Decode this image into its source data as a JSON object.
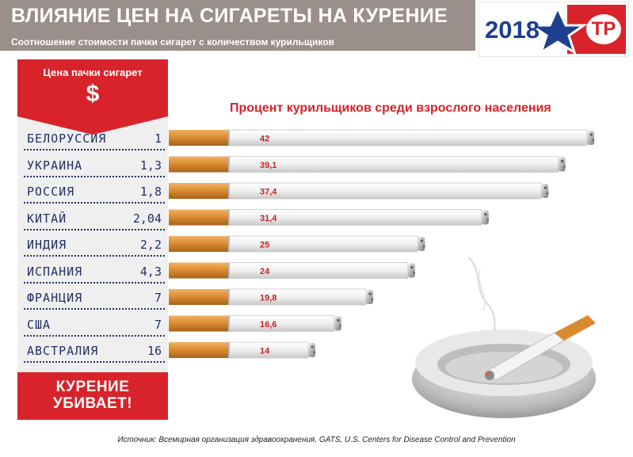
{
  "header": {
    "title": "ВЛИЯНИЕ ЦЕН НА СИГАРЕТЫ НА КУРЕНИЕ",
    "subtitle": "Соотношение стоимости пачки сигарет с количеством курильщиков"
  },
  "badge": {
    "year": "2018",
    "logo_text": "TP"
  },
  "price_panel": {
    "label": "Цена пачки сигарет",
    "symbol": "$"
  },
  "warning": {
    "line1": "КУРЕНИЕ",
    "line2": "УБИВАЕТ!"
  },
  "source": "Источник: Всемирная организация здравоохранения, GATS, U.S. Centers for Disease Control and Prevention",
  "colors": {
    "header_bg": "#9a8f8a",
    "accent_red": "#d8232a",
    "navy": "#24306a",
    "filter": "#d98a2e",
    "paper": "#f1f1f1"
  },
  "chart_data": {
    "type": "bar",
    "title": "Процент курильщиков среди взрослого населения",
    "xlabel": "",
    "ylabel": "",
    "xlim": [
      0,
      42
    ],
    "categories": [
      "БЕЛОРУССИЯ",
      "УКРАИНА",
      "РОССИЯ",
      "КИТАЙ",
      "ИНДИЯ",
      "ИСПАНИЯ",
      "ФРАНЦИЯ",
      "США",
      "АВСТРАЛИЯ"
    ],
    "prices": [
      "1",
      "1,3",
      "1,8",
      "2,04",
      "2,2",
      "4,3",
      "7",
      "7",
      "16"
    ],
    "values": [
      42,
      39.1,
      37.4,
      31.4,
      25,
      24,
      19.8,
      16.6,
      14
    ],
    "value_labels": [
      "42",
      "39,1",
      "37,4",
      "31,4",
      "25",
      "24",
      "19,8",
      "16,6",
      "14"
    ]
  }
}
